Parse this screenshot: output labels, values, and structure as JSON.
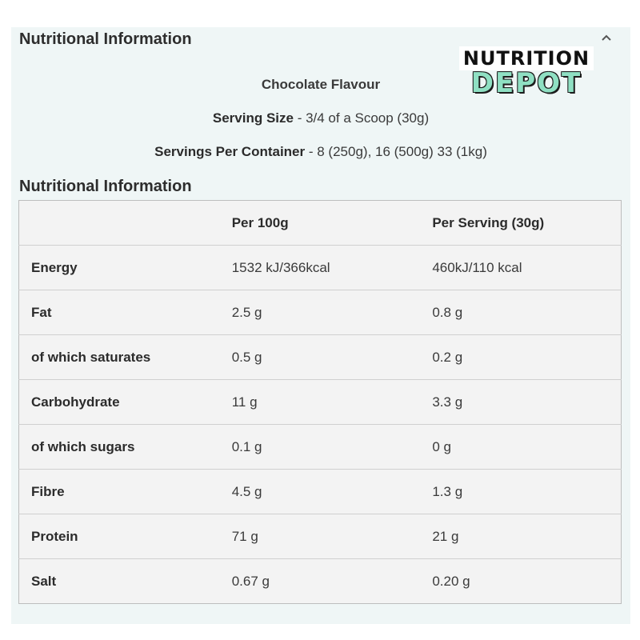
{
  "section": {
    "title": "Nutritional Information",
    "collapse_icon": "chevron-up-icon"
  },
  "logo": {
    "line1": "NUTRITION",
    "line2": "DEPOT",
    "colors": {
      "accent": "#8fe0c3",
      "dark": "#1c1c1c"
    }
  },
  "product": {
    "flavour": "Chocolate Flavour",
    "serving_size_label": "Serving Size",
    "serving_size_value": " - 3/4 of a Scoop (30g)",
    "servings_label": "Servings Per Container",
    "servings_value": " - 8 (250g), 16 (500g) 33 (1kg)"
  },
  "table": {
    "heading": "Nutritional Information",
    "columns": [
      "",
      "Per 100g",
      "Per Serving (30g)"
    ],
    "rows": [
      {
        "name": "Energy",
        "per100": "1532 kJ/366kcal",
        "perServing": "460kJ/110 kcal"
      },
      {
        "name": "Fat",
        "per100": "2.5 g",
        "perServing": "0.8 g"
      },
      {
        "name": "of which saturates",
        "per100": "0.5 g",
        "perServing": "0.2 g"
      },
      {
        "name": "Carbohydrate",
        "per100": "11 g",
        "perServing": "3.3 g"
      },
      {
        "name": "of which sugars",
        "per100": "0.1 g",
        "perServing": "0 g"
      },
      {
        "name": "Fibre",
        "per100": "4.5 g",
        "perServing": "1.3 g"
      },
      {
        "name": "Protein",
        "per100": "71 g",
        "perServing": "21 g"
      },
      {
        "name": "Salt",
        "per100": "0.67 g",
        "perServing": "0.20 g"
      }
    ]
  },
  "colors": {
    "panel_bg": "#eff6f6",
    "row_shade": "#f3f3f3",
    "border": "#cfcfcf"
  }
}
